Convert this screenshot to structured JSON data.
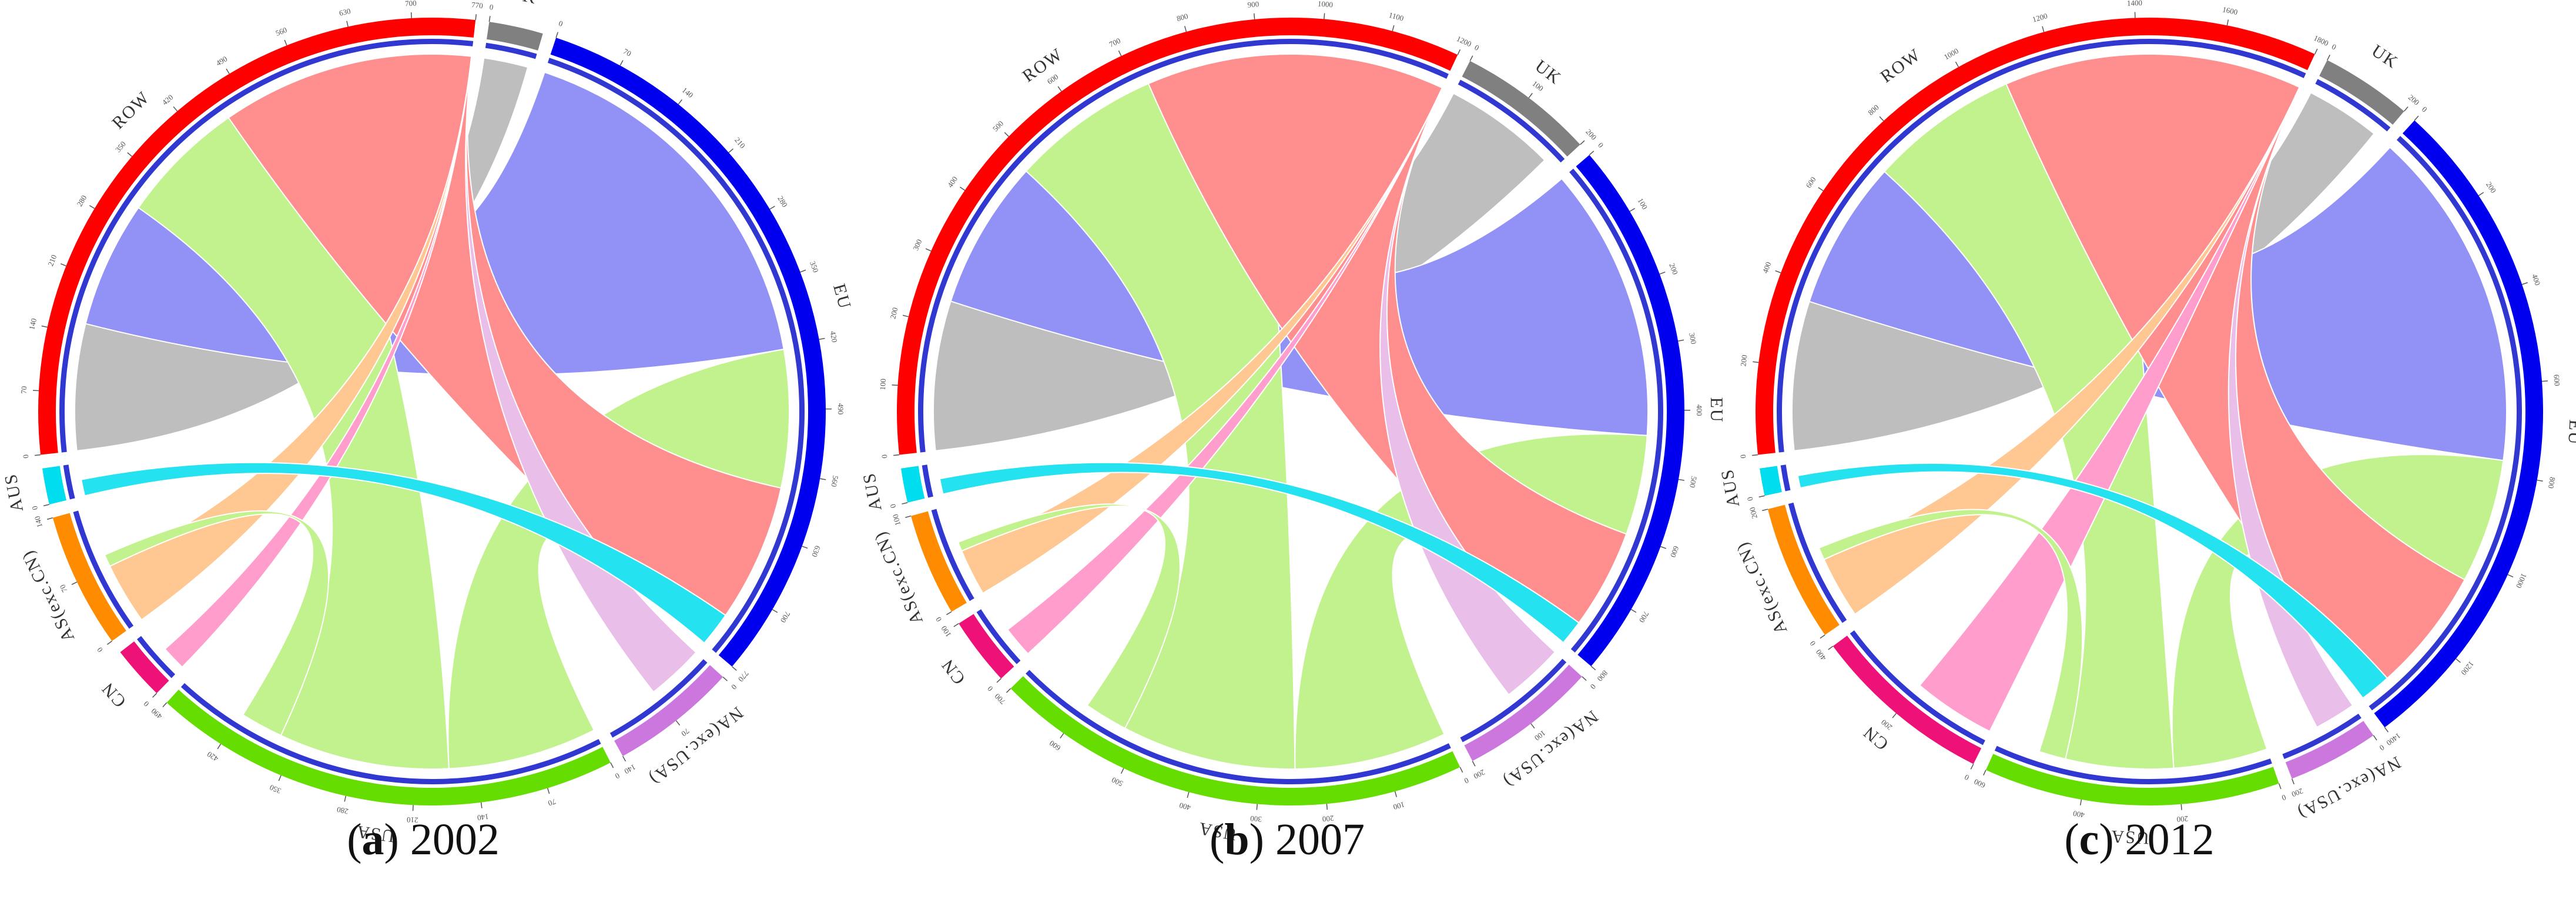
{
  "colors": {
    "ROW": "#ff0000",
    "UK": "#808080",
    "EU": "#0000ee",
    "NA(exc. USA)": "#cc77dd",
    "USA": "#66dd00",
    "CN": "#ee1177",
    "AS(exc. CN)": "#ff8c00",
    "AUS": "#00ddee",
    "ribbon_ROW": "#ff7b7b",
    "ribbon_UK": "#b3b3b3",
    "ribbon_EU": "#7e7ef5",
    "ribbon_NA": "#e6b3e6",
    "ribbon_USA": "#b8f07a",
    "ribbon_CN": "#ff8cc5",
    "ribbon_AS": "#ffbf80"
  },
  "panels": [
    {
      "caption_letter": "a",
      "caption_year": "2002",
      "segments": [
        {
          "name": "ROW",
          "label": "ROW",
          "value": 770,
          "tick_values": [
            "0",
            "70",
            "140",
            "210",
            "280",
            "350",
            "420",
            "490",
            "560",
            "630",
            "700",
            "770"
          ]
        },
        {
          "name": "UK",
          "label": "UK",
          "value": 60,
          "tick_values": [
            "0"
          ]
        },
        {
          "name": "EU",
          "label": "EU",
          "value": 840,
          "tick_values": [
            "0",
            "70",
            "140",
            "210",
            "280",
            "350",
            "420",
            "490",
            "560",
            "630",
            "700",
            "770"
          ]
        },
        {
          "name": "NA(exc. USA)",
          "label": "NA(exc.USA)",
          "value": 140,
          "tick_values": [
            "0",
            "70",
            "140"
          ]
        },
        {
          "name": "USA",
          "label": "USA",
          "value": 520,
          "tick_values": [
            "0",
            "70",
            "140",
            "210",
            "280",
            "350",
            "420",
            "490"
          ]
        },
        {
          "name": "CN",
          "label": "CN",
          "value": 60,
          "tick_values": [
            "0"
          ]
        },
        {
          "name": "AS(exc. CN)",
          "label": "AS(exc.CN)",
          "value": 150,
          "tick_values": [
            "0",
            "70",
            "140"
          ]
        },
        {
          "name": "AUS",
          "label": "AUS",
          "value": 40,
          "tick_values": [
            "0"
          ]
        }
      ]
    },
    {
      "caption_letter": "b",
      "caption_year": "2007",
      "segments": [
        {
          "name": "ROW",
          "label": "ROW",
          "value": 1200,
          "tick_values": [
            "0",
            "100",
            "200",
            "300",
            "400",
            "500",
            "600",
            "700",
            "800",
            "900",
            "1000",
            "1100",
            "1200"
          ]
        },
        {
          "name": "UK",
          "label": "UK",
          "value": 200,
          "tick_values": [
            "0",
            "100",
            "200"
          ]
        },
        {
          "name": "EU",
          "label": "EU",
          "value": 800,
          "tick_values": [
            "0",
            "100",
            "200",
            "300",
            "400",
            "500",
            "600",
            "700",
            "800"
          ]
        },
        {
          "name": "NA(exc. USA)",
          "label": "NA(exc.USA)",
          "value": 200,
          "tick_values": [
            "0",
            "100",
            "200"
          ]
        },
        {
          "name": "USA",
          "label": "USA",
          "value": 700,
          "tick_values": [
            "0",
            "100",
            "200",
            "300",
            "400",
            "500",
            "600",
            "700"
          ]
        },
        {
          "name": "CN",
          "label": "CN",
          "value": 100,
          "tick_values": [
            "0",
            "100"
          ]
        },
        {
          "name": "AS(exc. CN)",
          "label": "AS(exc.CN)",
          "value": 150,
          "tick_values": [
            "0",
            "100"
          ]
        },
        {
          "name": "AUS",
          "label": "AUS",
          "value": 50,
          "tick_values": [
            "0"
          ]
        }
      ]
    },
    {
      "caption_letter": "c",
      "caption_year": "2012",
      "segments": [
        {
          "name": "ROW",
          "label": "ROW",
          "value": 1800,
          "tick_values": [
            "0",
            "200",
            "400",
            "600",
            "800",
            "1000",
            "1200",
            "1400",
            "1600",
            "1800"
          ]
        },
        {
          "name": "UK",
          "label": "UK",
          "value": 200,
          "tick_values": [
            "0",
            "200"
          ]
        },
        {
          "name": "EU",
          "label": "EU",
          "value": 1500,
          "tick_values": [
            "0",
            "200",
            "400",
            "600",
            "800",
            "1000",
            "1200",
            "1400"
          ]
        },
        {
          "name": "NA(exc. USA)",
          "label": "NA(exc.USA)",
          "value": 200,
          "tick_values": [
            "0",
            "200"
          ]
        },
        {
          "name": "USA",
          "label": "USA",
          "value": 650,
          "tick_values": [
            "0",
            "200",
            "400",
            "600"
          ]
        },
        {
          "name": "CN",
          "label": "CN",
          "value": 400,
          "tick_values": [
            "0",
            "200",
            "400"
          ]
        },
        {
          "name": "AS(exc. CN)",
          "label": "AS(exc.CN)",
          "value": 300,
          "tick_values": [
            "0",
            "200"
          ]
        },
        {
          "name": "AUS",
          "label": "AUS",
          "value": 60,
          "tick_values": [
            "0"
          ]
        }
      ]
    }
  ]
}
